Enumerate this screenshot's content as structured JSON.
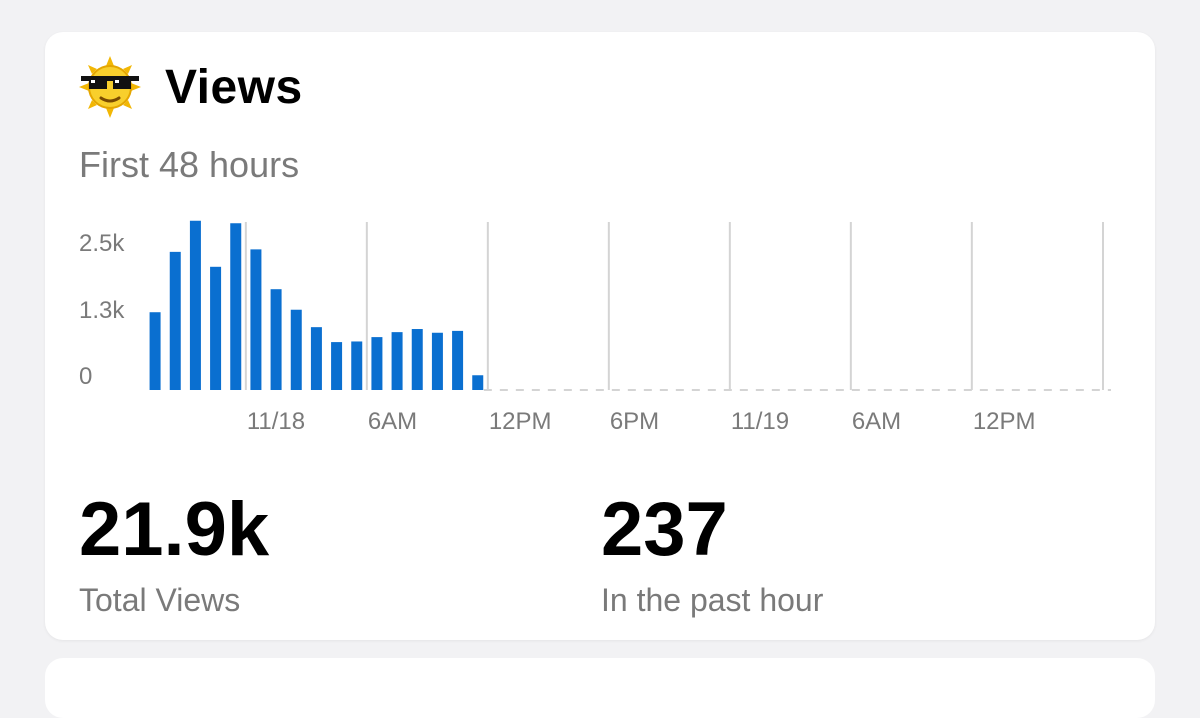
{
  "card": {
    "title": "Views",
    "icon": "sun-with-sunglasses-icon",
    "subtitle": "First 48 hours"
  },
  "stats": {
    "total": {
      "value": "21.9k",
      "label": "Total Views"
    },
    "recent": {
      "value": "237",
      "label": "In the past hour"
    }
  },
  "colors": {
    "bar": "#0a6fd0",
    "grid": "#d4d4d4",
    "axis_text": "#7a7a7a"
  },
  "chart_data": {
    "type": "bar",
    "ylim": [
      0,
      2700
    ],
    "ytick_labels": [
      "0",
      "1.3k",
      "2.5k"
    ],
    "ytick_values": [
      0,
      1300,
      2500
    ],
    "xtick_labels": [
      "11/18",
      "6AM",
      "12PM",
      "6PM",
      "11/19",
      "6AM",
      "12PM"
    ],
    "hours_total": 48,
    "xtick_hour_offsets": [
      5,
      11,
      17,
      23,
      29,
      35,
      41
    ],
    "values": [
      1250,
      2220,
      2720,
      1980,
      2680,
      2260,
      1620,
      1290,
      1010,
      770,
      780,
      850,
      930,
      980,
      920,
      950,
      237
    ]
  }
}
